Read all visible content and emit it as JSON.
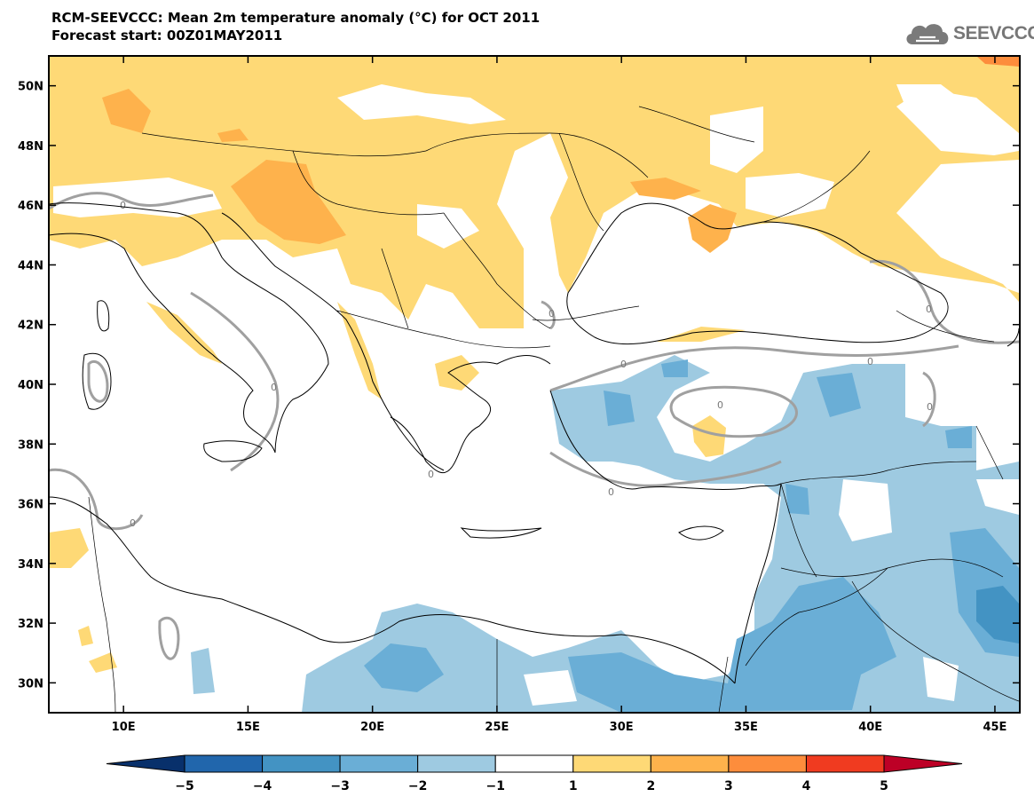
{
  "header": {
    "title": "RCM-SEEVCCC: Mean 2m temperature anomaly (°C) for OCT 2011",
    "subtitle": "Forecast start: 00Z01MAY2011"
  },
  "logo": {
    "text": "SEEVCCC",
    "icon": "cloud-icon"
  },
  "map": {
    "lon_range": [
      7,
      46
    ],
    "lat_range": [
      29,
      51
    ],
    "lon_ticks": [
      {
        "value": 10,
        "label": "10E"
      },
      {
        "value": 15,
        "label": "15E"
      },
      {
        "value": 20,
        "label": "20E"
      },
      {
        "value": 25,
        "label": "25E"
      },
      {
        "value": 30,
        "label": "30E"
      },
      {
        "value": 35,
        "label": "35E"
      },
      {
        "value": 40,
        "label": "40E"
      },
      {
        "value": 45,
        "label": "45E"
      }
    ],
    "lat_ticks": [
      {
        "value": 50,
        "label": "50N"
      },
      {
        "value": 48,
        "label": "48N"
      },
      {
        "value": 46,
        "label": "46N"
      },
      {
        "value": 44,
        "label": "44N"
      },
      {
        "value": 42,
        "label": "42N"
      },
      {
        "value": 40,
        "label": "40N"
      },
      {
        "value": 38,
        "label": "38N"
      },
      {
        "value": 36,
        "label": "36N"
      },
      {
        "value": 34,
        "label": "34N"
      },
      {
        "value": 32,
        "label": "32N"
      },
      {
        "value": 30,
        "label": "30N"
      }
    ],
    "contour_label": "0"
  },
  "colorbar": {
    "labels": [
      "−5",
      "−4",
      "−3",
      "−2",
      "−1",
      "1",
      "2",
      "3",
      "4",
      "5"
    ],
    "colors": [
      "#08306b",
      "#2166ac",
      "#4393c3",
      "#6aaed6",
      "#9ecae1",
      "#ffffff",
      "#fed976",
      "#feb24c",
      "#fd8d3c",
      "#f03b20",
      "#bd0026"
    ]
  }
}
